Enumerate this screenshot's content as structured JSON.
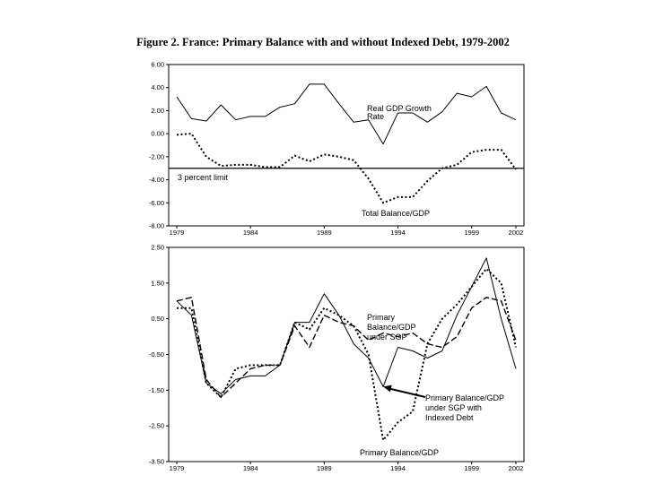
{
  "figure_title": "Figure 2. France: Primary Balance with and without Indexed Debt, 1979-2002",
  "chart_data": [
    {
      "type": "line",
      "x": [
        1979,
        1980,
        1981,
        1982,
        1983,
        1984,
        1985,
        1986,
        1987,
        1988,
        1989,
        1990,
        1991,
        1992,
        1993,
        1994,
        1995,
        1996,
        1997,
        1998,
        1999,
        2000,
        2001,
        2002
      ],
      "x_tick_labels": [
        "1979",
        "1984",
        "1989",
        "1994",
        "1999",
        "2002"
      ],
      "x_tick_values": [
        1979,
        1984,
        1989,
        1994,
        1999,
        2002
      ],
      "y_tick_labels": [
        "6.00",
        "4.00",
        "2.00",
        "0.00",
        "-2.00",
        "-4.00",
        "-6.00",
        "-8.00"
      ],
      "ylim": [
        -8,
        6
      ],
      "series": [
        {
          "name": "Real GDP Growth Rate",
          "style": "solid",
          "values": [
            3.2,
            1.3,
            1.1,
            2.5,
            1.2,
            1.5,
            1.5,
            2.3,
            2.6,
            4.3,
            4.3,
            2.6,
            1.0,
            1.2,
            -0.9,
            1.8,
            1.8,
            1.0,
            1.9,
            3.5,
            3.2,
            4.1,
            1.8,
            1.2
          ]
        },
        {
          "name": "Total Balance/GDP",
          "style": "dotted",
          "values": [
            -0.1,
            0.0,
            -2.0,
            -2.8,
            -2.7,
            -2.7,
            -2.9,
            -2.9,
            -1.9,
            -2.4,
            -1.8,
            -2.0,
            -2.3,
            -3.9,
            -6.0,
            -5.5,
            -5.5,
            -4.1,
            -3.0,
            -2.7,
            -1.6,
            -1.4,
            -1.4,
            -3.1
          ]
        }
      ],
      "reference_line": {
        "label": "3 percent limit",
        "value": -3
      },
      "annotations": [
        "Real GDP Growth Rate",
        "3 percent limit",
        "Total Balance/GDP"
      ],
      "annotation_lines": {
        "gdp": [
          "Real GDP Growth",
          "Rate"
        ]
      }
    },
    {
      "type": "line",
      "x": [
        1979,
        1980,
        1981,
        1982,
        1983,
        1984,
        1985,
        1986,
        1987,
        1988,
        1989,
        1990,
        1991,
        1992,
        1993,
        1994,
        1995,
        1996,
        1997,
        1998,
        1999,
        2000,
        2001,
        2002
      ],
      "x_tick_labels": [
        "1979",
        "1984",
        "1989",
        "1994",
        "1999",
        "2002"
      ],
      "x_tick_values": [
        1979,
        1984,
        1989,
        1994,
        1999,
        2002
      ],
      "y_tick_labels": [
        "2.50",
        "1.50",
        "0.50",
        "-0.50",
        "-1.50",
        "-2.50",
        "-3.50"
      ],
      "ylim": [
        -3.5,
        2.5
      ],
      "series": [
        {
          "name": "Primary Balance/GDP",
          "style": "dotted",
          "values": [
            0.8,
            0.8,
            -1.3,
            -1.7,
            -0.9,
            -0.8,
            -0.8,
            -0.8,
            0.4,
            0.2,
            0.8,
            0.6,
            0.3,
            -0.5,
            -2.9,
            -2.4,
            -2.1,
            -0.2,
            0.5,
            0.9,
            1.4,
            1.9,
            1.5,
            -0.3
          ]
        },
        {
          "name": "Primary Balance/GDP under SGP",
          "style": "dashed",
          "values": [
            1.0,
            1.1,
            -1.2,
            -1.7,
            -1.3,
            -0.9,
            -0.8,
            -0.8,
            0.3,
            -0.3,
            0.6,
            0.4,
            0.3,
            -0.1,
            0.1,
            0.0,
            0.1,
            -0.2,
            -0.3,
            0.0,
            0.8,
            1.1,
            1.0,
            -0.1
          ]
        },
        {
          "name": "Primary Balance/GDP under SGP with Indexed Debt",
          "style": "solid",
          "values": [
            1.0,
            0.6,
            -1.3,
            -1.6,
            -1.2,
            -1.1,
            -1.1,
            -0.8,
            0.4,
            0.4,
            1.2,
            0.6,
            -0.2,
            -0.6,
            -1.4,
            -0.3,
            -0.4,
            -0.6,
            -0.4,
            0.6,
            1.4,
            2.2,
            0.5,
            -0.9
          ]
        }
      ],
      "annotations": [
        "Primary Balance/GDP under SGP",
        "Primary Balance/GDP under SGP with Indexed Debt",
        "Primary Balance/GDP"
      ],
      "annotation_lines": {
        "sgp": [
          "Primary",
          "Balance/GDP",
          "under SGP"
        ],
        "indexed": [
          "Primary Balance/GDP",
          "under SGP  with",
          "Indexed Debt"
        ],
        "primary": [
          "Primary Balance/GDP"
        ]
      },
      "arrow_target": {
        "x": 1993,
        "y": -1.4
      }
    }
  ]
}
